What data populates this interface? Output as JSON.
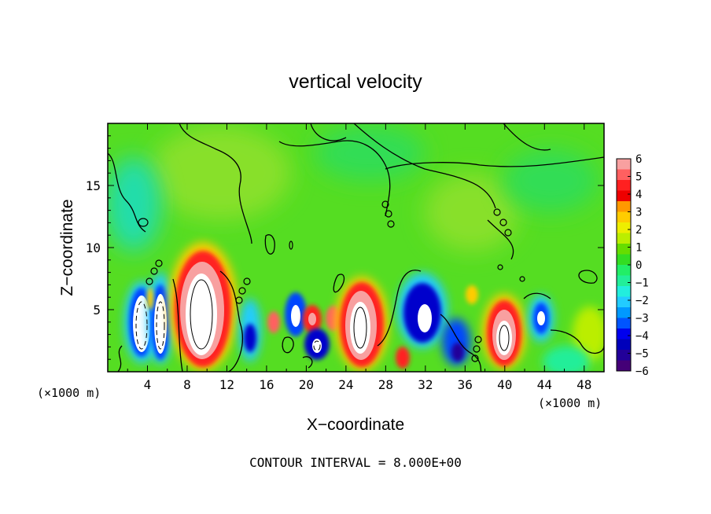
{
  "chart_data": {
    "type": "heatmap",
    "title": "vertical velocity",
    "xlabel": "X−coordinate",
    "ylabel": "Z−coordinate",
    "x_unit": "(×1000 m)",
    "z_unit": "(×1000 m)",
    "xlim": [
      0,
      50
    ],
    "ylim": [
      0,
      20
    ],
    "x_ticks": [
      "4",
      "8",
      "12",
      "16",
      "20",
      "24",
      "28",
      "32",
      "36",
      "40",
      "44",
      "48"
    ],
    "y_ticks": [
      "5",
      "10",
      "15"
    ],
    "colorbar": {
      "levels": [
        "6",
        "5",
        "4",
        "3",
        "2",
        "1",
        "0",
        "−1",
        "−2",
        "−3",
        "−4",
        "−5",
        "−6"
      ],
      "colors": [
        "#f8a0a0",
        "#ff6060",
        "#ff2020",
        "#ee0000",
        "#ff9900",
        "#ffcc00",
        "#eeee00",
        "#bbee00",
        "#66dd00",
        "#33dd22",
        "#22ee66",
        "#22ee99",
        "#22eedd",
        "#22ccff",
        "#0099ff",
        "#0055ff",
        "#0000ee",
        "#0000bb",
        "#220099",
        "#440077"
      ]
    },
    "footer": "CONTOUR INTERVAL = 8.000E+00",
    "background_level": 0,
    "cells": [
      {
        "x": 3.5,
        "z": 3.6,
        "value": -6
      },
      {
        "x": 5.2,
        "z": 3.8,
        "value": -6
      },
      {
        "x": 9.0,
        "z": 4.2,
        "value": 6
      },
      {
        "x": 14.0,
        "z": 3.0,
        "value": -4
      },
      {
        "x": 18.8,
        "z": 4.0,
        "value": -5
      },
      {
        "x": 20.0,
        "z": 3.8,
        "value": 5
      },
      {
        "x": 20.5,
        "z": 2.3,
        "value": -5
      },
      {
        "x": 25.5,
        "z": 3.5,
        "value": 6
      },
      {
        "x": 30.5,
        "z": 1.2,
        "value": 5
      },
      {
        "x": 32.0,
        "z": 4.5,
        "value": -5
      },
      {
        "x": 36.0,
        "z": 3.0,
        "value": -4
      },
      {
        "x": 39.8,
        "z": 3.0,
        "value": 6
      },
      {
        "x": 43.5,
        "z": 4.5,
        "value": -5
      },
      {
        "x": 47.0,
        "z": 3.0,
        "value": 1
      }
    ]
  }
}
